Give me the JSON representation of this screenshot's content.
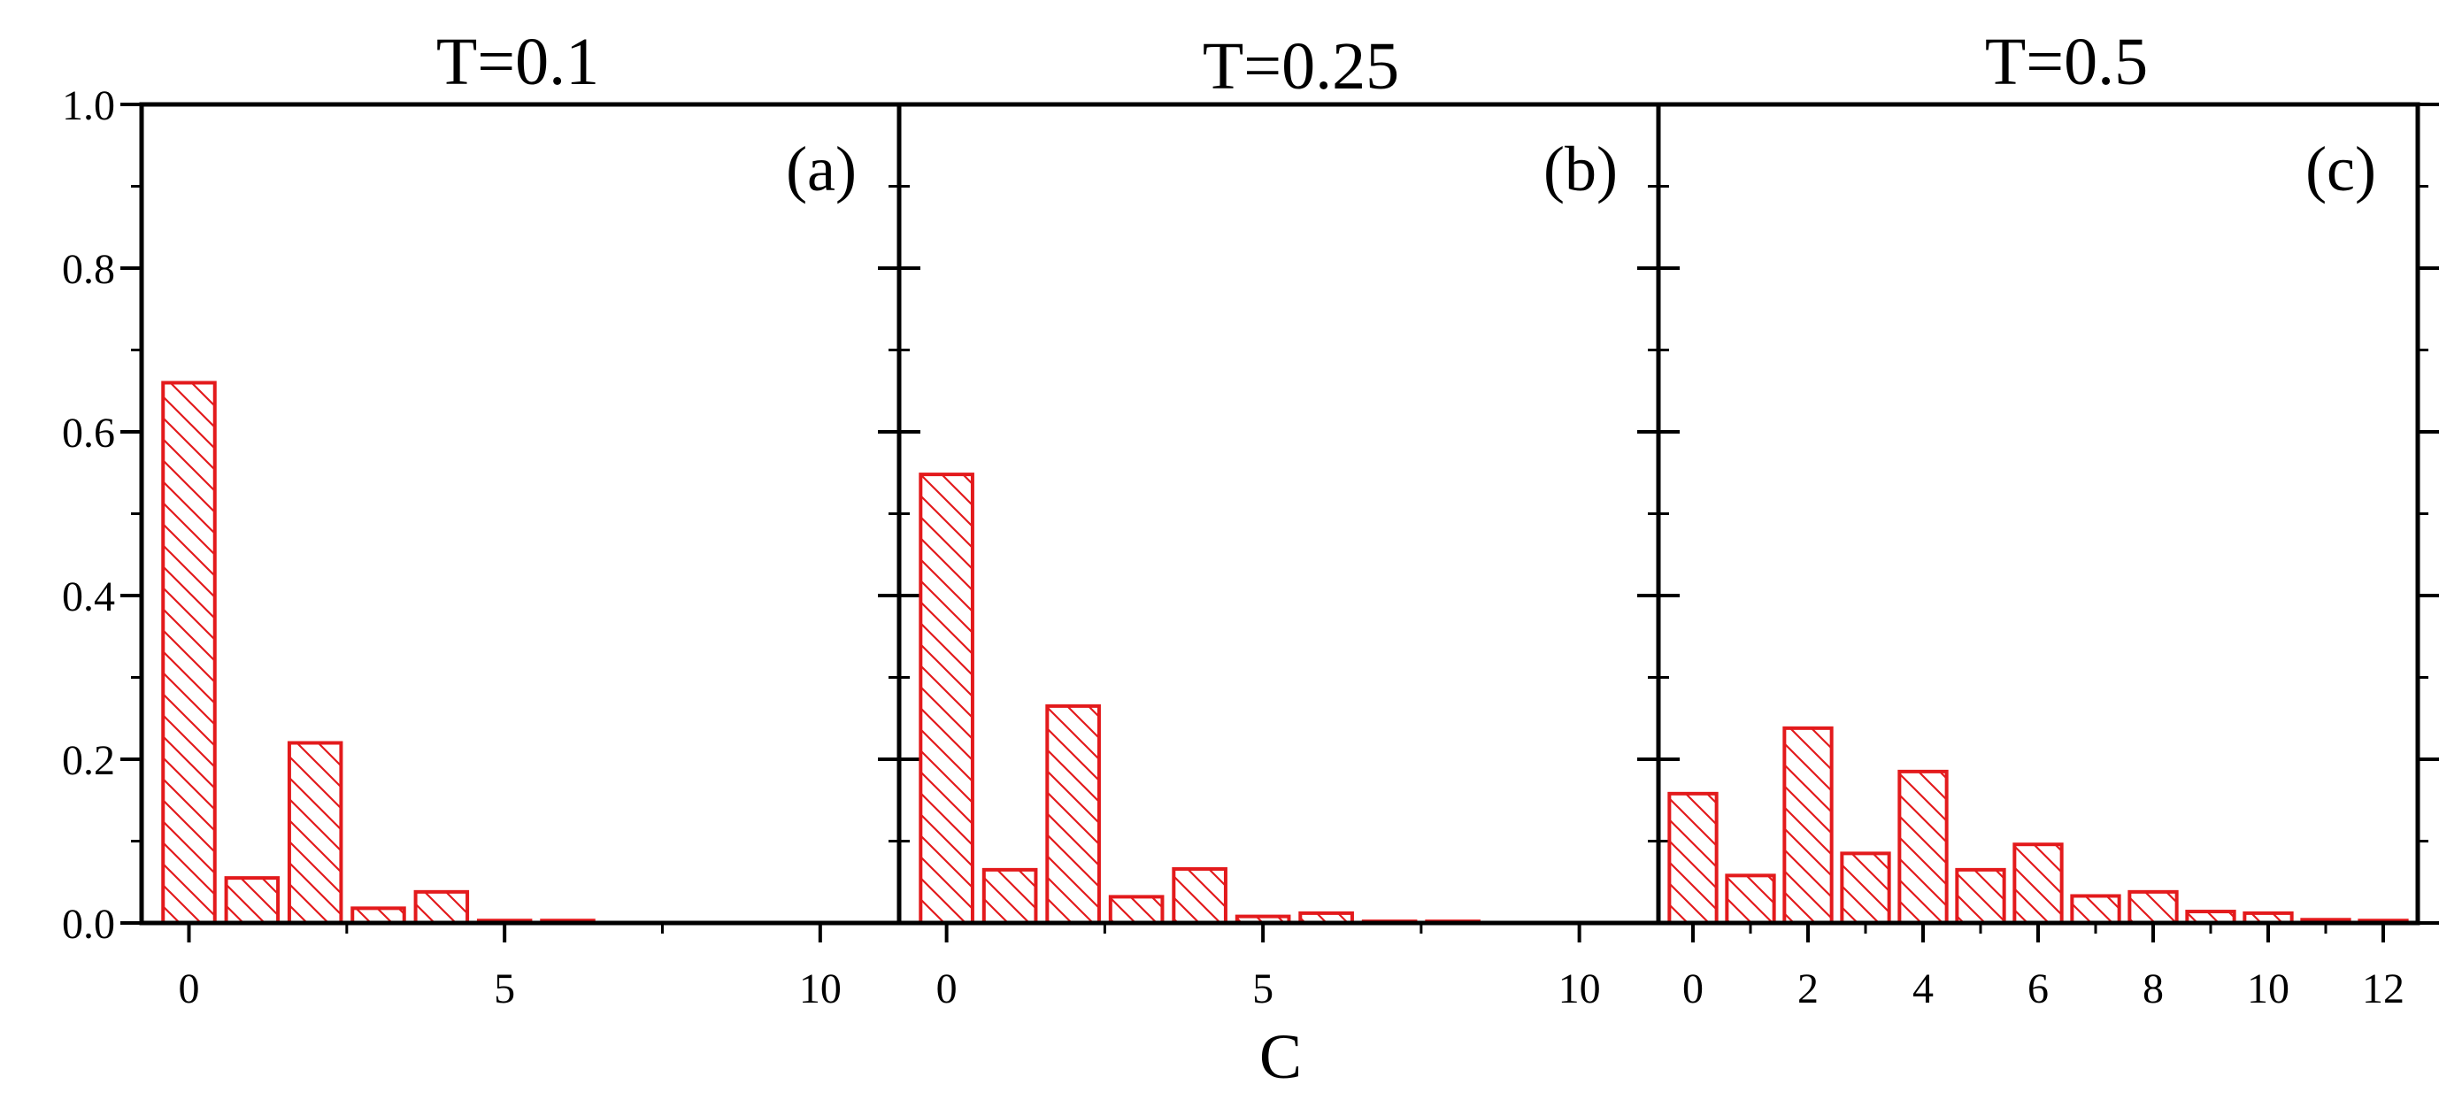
{
  "colors": {
    "bar": "#e31a1c",
    "axis": "#000000",
    "hatch": "#e31a1c"
  },
  "xlabel": "C",
  "y_axis": {
    "ylim": [
      0,
      1.0
    ],
    "ticks": [
      "0.0",
      "0.2",
      "0.4",
      "0.6",
      "0.8",
      "1.0"
    ]
  },
  "chart_data": [
    {
      "type": "bar",
      "title": "T=0.1",
      "tag": "(a)",
      "xlabel": "C",
      "ylabel": "",
      "xlim": [
        -0.75,
        11.25
      ],
      "ylim": [
        0,
        1.0
      ],
      "xticks": [
        0,
        5,
        10
      ],
      "xtick_labels": [
        "0",
        "5",
        "10"
      ],
      "categories": [
        0,
        1,
        2,
        3,
        4,
        5,
        6
      ],
      "values": [
        0.66,
        0.055,
        0.22,
        0.018,
        0.038,
        0.003,
        0.003
      ]
    },
    {
      "type": "bar",
      "title": "T=0.25",
      "tag": "(b)",
      "xlabel": "C",
      "ylabel": "",
      "xlim": [
        -0.75,
        11.25
      ],
      "ylim": [
        0,
        1.0
      ],
      "xticks": [
        0,
        5,
        10
      ],
      "xtick_labels": [
        "0",
        "5",
        "10"
      ],
      "categories": [
        0,
        1,
        2,
        3,
        4,
        5,
        6,
        7,
        8
      ],
      "values": [
        0.548,
        0.065,
        0.265,
        0.032,
        0.066,
        0.008,
        0.012,
        0.002,
        0.002
      ]
    },
    {
      "type": "bar",
      "title": "T=0.5",
      "tag": "(c)",
      "xlabel": "C",
      "ylabel": "",
      "xlim": [
        -0.6,
        12.6
      ],
      "ylim": [
        0,
        1.0
      ],
      "xticks": [
        0,
        2,
        4,
        6,
        8,
        10,
        12
      ],
      "xtick_labels": [
        "0",
        "2",
        "4",
        "6",
        "8",
        "10",
        "12"
      ],
      "categories": [
        0,
        1,
        2,
        3,
        4,
        5,
        6,
        7,
        8,
        9,
        10,
        11,
        12
      ],
      "values": [
        0.158,
        0.058,
        0.238,
        0.085,
        0.185,
        0.065,
        0.096,
        0.033,
        0.038,
        0.014,
        0.012,
        0.004,
        0.003
      ]
    }
  ]
}
